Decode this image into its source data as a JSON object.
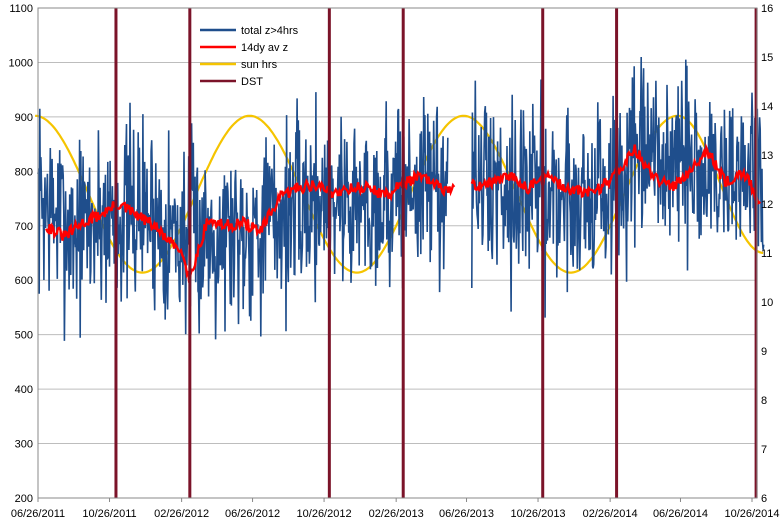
{
  "chart_data": {
    "type": "line",
    "title": "",
    "xlabel": "",
    "ylabel": "",
    "y_left_lim": [
      200,
      1100
    ],
    "y_left_ticks": [
      "200",
      "300",
      "400",
      "500",
      "600",
      "700",
      "800",
      "900",
      "1000",
      "1100"
    ],
    "y_right_lim": [
      6,
      16
    ],
    "y_right_ticks": [
      "6",
      "7",
      "8",
      "9",
      "10",
      "11",
      "12",
      "13",
      "14",
      "15",
      "16"
    ],
    "x_tick_labels": [
      "06/26/2011",
      "10/26/2011",
      "02/26/2012",
      "06/26/2012",
      "10/26/2012",
      "02/26/2013",
      "06/26/2013",
      "10/26/2013",
      "02/26/2014",
      "06/26/2014",
      "10/26/2014"
    ],
    "grid": true,
    "legend_position": "top-left",
    "series": [
      {
        "name": "total z>4hrs",
        "color": "#1f4e8c",
        "axis": "left",
        "x": [
          "06/26/2011",
          "08/26/2011",
          "10/26/2011",
          "12/26/2011",
          "02/26/2012",
          "04/26/2012",
          "06/26/2012",
          "08/26/2012",
          "10/26/2012",
          "12/26/2012",
          "02/26/2013",
          "04/26/2013",
          "06/26/2013",
          "08/26/2013",
          "10/26/2013",
          "12/26/2013",
          "02/26/2014",
          "04/26/2014",
          "06/26/2014",
          "08/26/2014",
          "10/26/2014",
          "11/15/2014"
        ],
        "values": [
          750,
          690,
          720,
          730,
          680,
          690,
          700,
          720,
          760,
          740,
          760,
          780,
          770,
          780,
          760,
          750,
          760,
          820,
          810,
          790,
          800,
          760
        ]
      },
      {
        "name": "14dy av z",
        "color": "#ff0000",
        "axis": "left",
        "x": [
          "07/10/2011",
          "08/10/2011",
          "09/10/2011",
          "10/10/2011",
          "11/10/2011",
          "12/10/2011",
          "01/10/2012",
          "02/10/2012",
          "03/01/2012",
          "03/10/2012",
          "04/10/2012",
          "05/10/2012",
          "06/10/2012",
          "07/10/2012",
          "08/10/2012",
          "09/10/2012",
          "10/10/2012",
          "11/10/2012",
          "12/10/2012",
          "01/10/2013",
          "02/10/2013",
          "03/10/2013",
          "04/10/2013",
          "05/10/2013",
          "06/10/2013",
          "07/10/2013",
          "08/10/2013",
          "09/10/2013",
          "10/10/2013",
          "11/10/2013",
          "12/10/2013",
          "01/10/2014",
          "02/10/2014",
          "03/10/2014",
          "04/10/2014",
          "05/10/2014",
          "06/10/2014",
          "07/10/2014",
          "08/10/2014",
          "09/10/2014",
          "10/10/2014",
          "11/10/2014"
        ],
        "values": [
          700,
          680,
          705,
          720,
          740,
          720,
          700,
          665,
          650,
          600,
          710,
          700,
          705,
          690,
          750,
          770,
          775,
          760,
          770,
          770,
          755,
          780,
          790,
          770,
          765,
          775,
          780,
          790,
          770,
          790,
          770,
          760,
          770,
          800,
          840,
          790,
          770,
          800,
          840,
          780,
          800,
          740
        ]
      },
      {
        "name": "sun hrs",
        "color": "#f5c400",
        "axis": "right",
        "x": [
          "06/21/2011",
          "12/21/2011",
          "06/21/2012",
          "12/21/2012",
          "06/21/2013",
          "12/21/2013",
          "06/21/2014",
          "11/15/2014"
        ],
        "values": [
          13.8,
          10.6,
          13.8,
          10.6,
          13.8,
          10.6,
          13.8,
          11
        ]
      }
    ],
    "annotations": [
      {
        "name": "DST",
        "color": "#7b1329",
        "type": "vertical-lines",
        "x": [
          "11/06/2011",
          "03/11/2012",
          "11/04/2012",
          "03/10/2013",
          "11/03/2013",
          "03/09/2014",
          "11/02/2014"
        ]
      }
    ]
  }
}
